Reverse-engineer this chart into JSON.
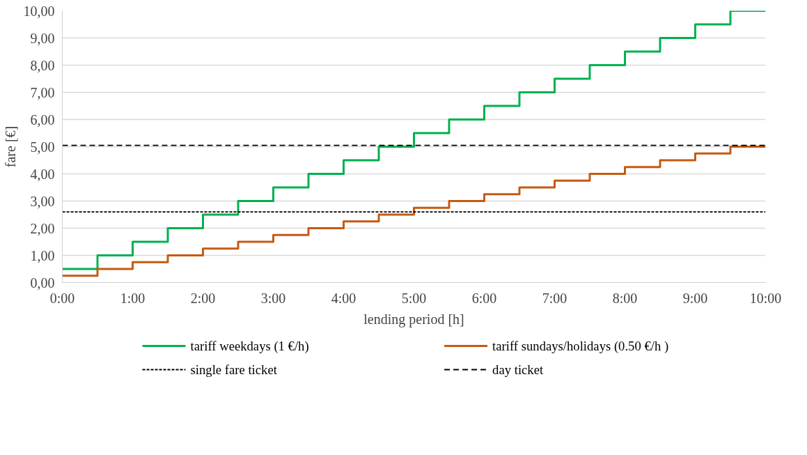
{
  "chart_data": {
    "type": "step",
    "xlabel": "lending period [h]",
    "ylabel": "fare [€]",
    "x": [
      0,
      0.5,
      1,
      1.5,
      2,
      2.5,
      3,
      3.5,
      4,
      4.5,
      5,
      5.5,
      6,
      6.5,
      7,
      7.5,
      8,
      8.5,
      9,
      9.5,
      10
    ],
    "series": [
      {
        "name": "tariff weekdays (1 €/h)",
        "color": "#00b050",
        "values": [
          0.5,
          1,
          1.5,
          2,
          2.5,
          3,
          3.5,
          4,
          4.5,
          5,
          5.5,
          6,
          6.5,
          7,
          7.5,
          8,
          8.5,
          9,
          9.5,
          10,
          10
        ]
      },
      {
        "name": "tariff sundays/holidays (0.50 €/h )",
        "color": "#c55a11",
        "values": [
          0.25,
          0.5,
          0.75,
          1,
          1.25,
          1.5,
          1.75,
          2,
          2.25,
          2.5,
          2.75,
          3,
          3.25,
          3.5,
          3.75,
          4,
          4.25,
          4.5,
          4.75,
          5,
          5
        ]
      }
    ],
    "ref_lines": [
      {
        "axis": "y",
        "value": 2.6,
        "label": "single fare ticket",
        "color": "#000000",
        "line_style": "dotted"
      },
      {
        "axis": "y",
        "value": 5.05,
        "label": "day ticket",
        "color": "#000000",
        "line_style": "dashed"
      }
    ],
    "xlim": [
      0,
      10
    ],
    "xticks": [
      {
        "value": 0,
        "label": "0:00"
      },
      {
        "value": 1,
        "label": "1:00"
      },
      {
        "value": 2,
        "label": "2:00"
      },
      {
        "value": 3,
        "label": "3:00"
      },
      {
        "value": 4,
        "label": "4:00"
      },
      {
        "value": 5,
        "label": "5:00"
      },
      {
        "value": 6,
        "label": "6:00"
      },
      {
        "value": 7,
        "label": "7:00"
      },
      {
        "value": 8,
        "label": "8:00"
      },
      {
        "value": 9,
        "label": "9:00"
      },
      {
        "value": 10,
        "label": "10:00"
      }
    ],
    "ylim": [
      0,
      10
    ],
    "yticks": [
      {
        "value": 0,
        "label": "0,00"
      },
      {
        "value": 1,
        "label": "1,00"
      },
      {
        "value": 2,
        "label": "2,00"
      },
      {
        "value": 3,
        "label": "3,00"
      },
      {
        "value": 4,
        "label": "4,00"
      },
      {
        "value": 5,
        "label": "5,00"
      },
      {
        "value": 6,
        "label": "6,00"
      },
      {
        "value": 7,
        "label": "7,00"
      },
      {
        "value": 8,
        "label": "8,00"
      },
      {
        "value": 9,
        "label": "9,00"
      },
      {
        "value": 10,
        "label": "10,00"
      }
    ],
    "grid": "y",
    "legend": "bottom",
    "line_style": "solid",
    "marker": "none"
  }
}
